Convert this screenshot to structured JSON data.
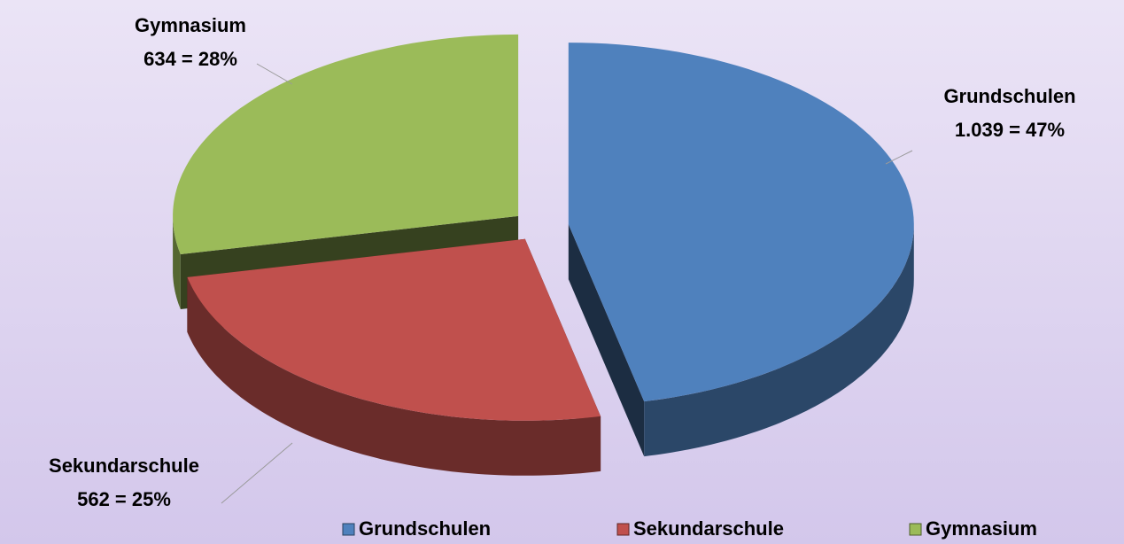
{
  "chart_data": {
    "type": "pie",
    "categories": [
      "Grundschulen",
      "Sekundarschule",
      "Gymnasium"
    ],
    "values": [
      1039,
      562,
      634
    ],
    "value_labels": [
      "1.039 = 47%",
      "562 = 25%",
      "634 = 28%"
    ],
    "colors": [
      "#4f81bd",
      "#c0504d",
      "#9bbb59"
    ],
    "legend": "bottom"
  }
}
